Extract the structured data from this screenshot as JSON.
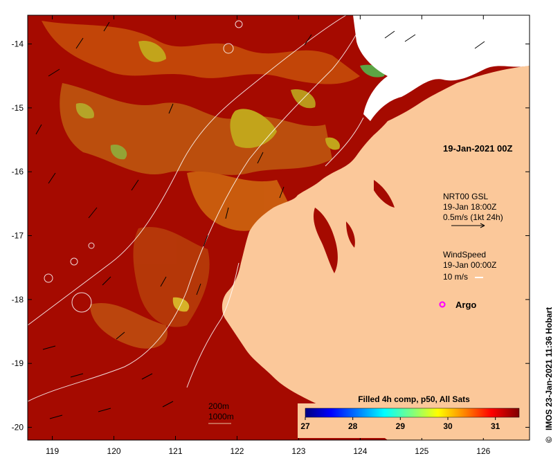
{
  "map": {
    "date_label": "19-Jan-2021 00Z",
    "colorbar": {
      "title": "Filled 4h comp, p50, All Sats",
      "tick_labels": [
        "27",
        "28",
        "29",
        "30",
        "31"
      ],
      "range": [
        27,
        31.5
      ],
      "colors": [
        "#00007f",
        "#0000ff",
        "#0080ff",
        "#00ffff",
        "#7fff7f",
        "#ffff00",
        "#ff8000",
        "#ff0000",
        "#7f0000"
      ]
    },
    "longitude_ticks": [
      "119",
      "120",
      "121",
      "122",
      "123",
      "124",
      "125",
      "126"
    ],
    "latitude_ticks": [
      "-14",
      "-15",
      "-16",
      "-17",
      "-18",
      "-19",
      "-20"
    ],
    "lon_range": [
      118.6,
      126.75
    ],
    "lat_range": [
      -20.2,
      -13.55
    ],
    "current_legend": {
      "line1": "NRT00 GSL",
      "line2": "19-Jan 18:00Z",
      "line3": "0.5m/s (1kt 24h)"
    },
    "wind_legend": {
      "line1": "WindSpeed",
      "line2": "19-Jan 00:00Z",
      "line3": "10 m/s"
    },
    "argo_label": "Argo",
    "depth_contours": [
      "200m",
      "1000m"
    ],
    "credit": "IMOS 23-Jan-2021 11:36 Hobart",
    "copyright_symbol": "©",
    "colors": {
      "warm_water": "#a50a00",
      "land": "#fbc89a",
      "cloud_gap": "#ffffff",
      "argo": "#ff00ff",
      "contour": "#ffffff"
    }
  }
}
